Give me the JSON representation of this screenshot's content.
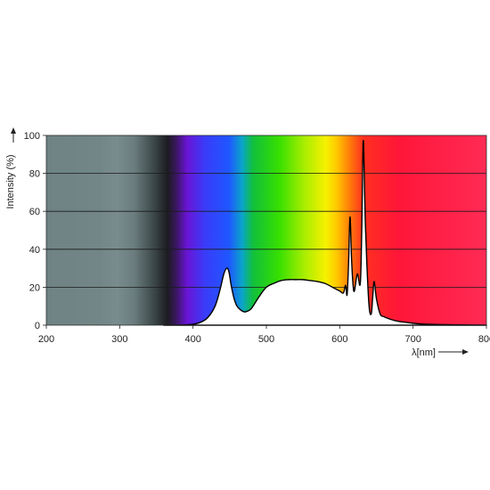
{
  "chart_data": {
    "type": "area",
    "title": "",
    "ylabel": "Intensity (%)",
    "xlabel": "λ[nm]",
    "xlim": [
      200,
      800
    ],
    "ylim": [
      0,
      100
    ],
    "xticks": [
      "200",
      "300",
      "400",
      "500",
      "600",
      "700",
      "800"
    ],
    "yticks": [
      "0",
      "20",
      "40",
      "60",
      "80",
      "100"
    ],
    "grid": true,
    "background": "visible spectrum gradient",
    "series": [
      {
        "x": [
          360,
          380,
          400,
          410,
          420,
          430,
          437,
          442,
          446,
          449,
          452,
          456,
          460,
          465,
          470,
          475,
          480,
          490,
          500,
          510,
          520,
          530,
          540,
          550,
          560,
          570,
          580,
          590,
          600,
          605,
          608,
          610,
          612,
          614,
          616,
          618,
          620,
          624,
          628,
          630,
          632,
          634,
          635,
          637,
          640,
          643,
          645,
          647,
          650,
          655,
          660,
          670,
          680,
          690,
          700,
          710,
          720,
          740,
          760,
          780,
          800
        ],
        "values": [
          0,
          0,
          0.5,
          1.5,
          4,
          10,
          19,
          27,
          30,
          28,
          21,
          14,
          10,
          8,
          7,
          7.5,
          9,
          15,
          20,
          22,
          23.5,
          24,
          24,
          24,
          23.5,
          23,
          22,
          20,
          18,
          17,
          21,
          16,
          32,
          57,
          36,
          22,
          18,
          27,
          22,
          50,
          97,
          68,
          53,
          32,
          10,
          6,
          15,
          23,
          14,
          6,
          4.5,
          3,
          2,
          1.5,
          1,
          0.7,
          0.5,
          0.3,
          0.2,
          0.1,
          0
        ]
      }
    ]
  }
}
